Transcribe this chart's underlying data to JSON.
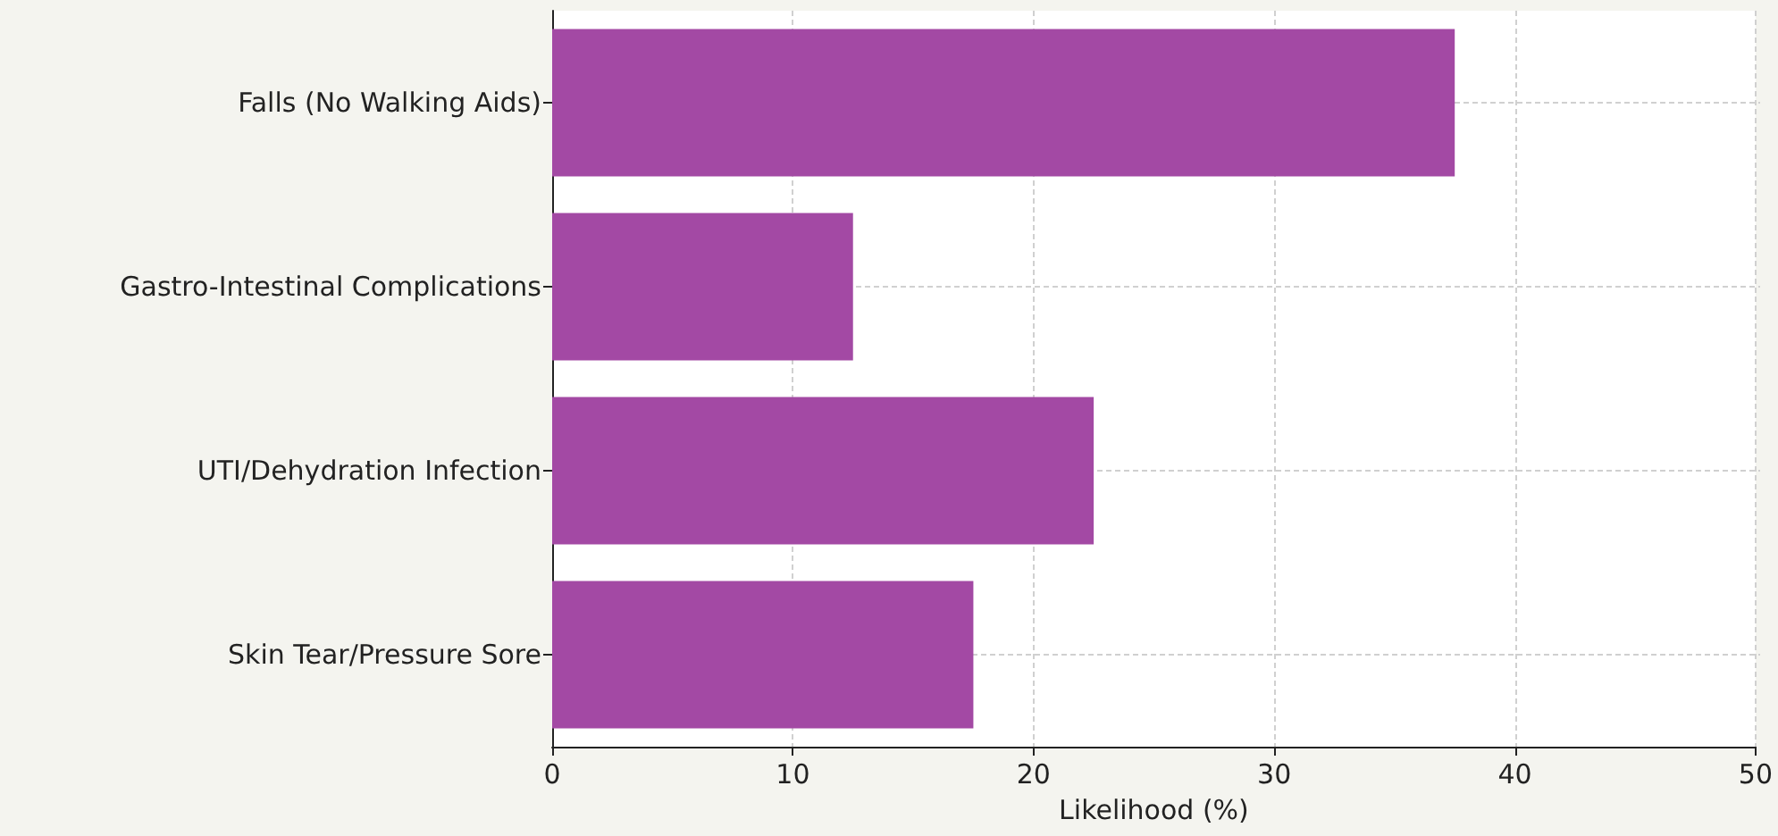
{
  "chart_data": {
    "type": "bar",
    "orientation": "horizontal",
    "xlabel": "Likelihood (%)",
    "categories": [
      "Falls (No Walking Aids)",
      "Gastro-Intestinal Complications",
      "UTI/Dehydration Infection",
      "Skin Tear/Pressure Sore"
    ],
    "values": [
      37.5,
      12.5,
      22.5,
      17.5
    ],
    "color": "#a349a4",
    "xlim": [
      0,
      50
    ],
    "xticks": [
      0,
      10,
      20,
      30,
      40,
      50
    ],
    "grid": true
  }
}
